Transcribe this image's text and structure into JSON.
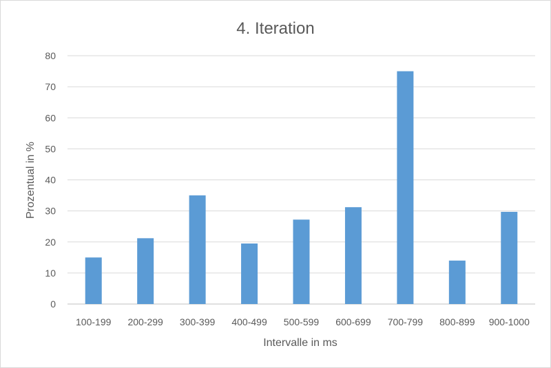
{
  "chart_data": {
    "type": "bar",
    "title": "4. Iteration",
    "xlabel": "Intervalle in ms",
    "ylabel": "Prozentual in %",
    "categories": [
      "100-199",
      "200-299",
      "300-399",
      "400-499",
      "500-599",
      "600-699",
      "700-799",
      "800-899",
      "900-1000"
    ],
    "values": [
      15,
      21.2,
      35,
      19.5,
      27.2,
      31.2,
      75,
      14,
      29.7
    ],
    "ylim": [
      0,
      80
    ],
    "yticks": [
      0,
      10,
      20,
      30,
      40,
      50,
      60,
      70,
      80
    ],
    "grid": true,
    "legend": "none",
    "bar_color": "#5b9bd5"
  }
}
